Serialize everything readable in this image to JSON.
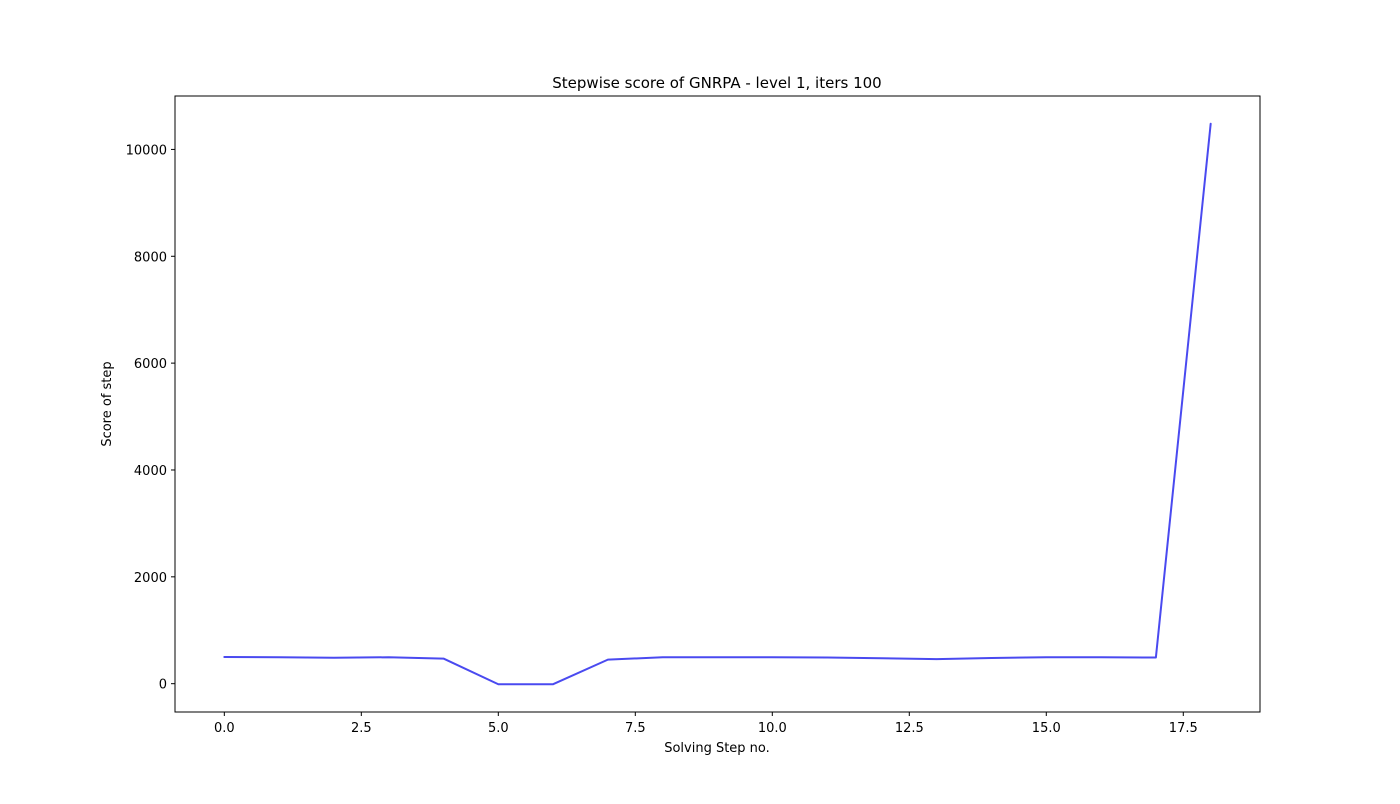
{
  "chart_data": {
    "type": "line",
    "title": "Stepwise score of GNRPA - level 1, iters 100",
    "xlabel": "Solving Step no.",
    "ylabel": "Score of step",
    "xlim": [
      -0.9,
      18.9
    ],
    "ylim": [
      -530,
      11000
    ],
    "x_ticks": [
      0.0,
      2.5,
      5.0,
      7.5,
      10.0,
      12.5,
      15.0,
      17.5
    ],
    "x_tick_labels": [
      "0.0",
      "2.5",
      "5.0",
      "7.5",
      "10.0",
      "12.5",
      "15.0",
      "17.5"
    ],
    "y_ticks": [
      0,
      2000,
      4000,
      6000,
      8000,
      10000
    ],
    "y_tick_labels": [
      "0",
      "2000",
      "4000",
      "6000",
      "8000",
      "10000"
    ],
    "grid": false,
    "series": [
      {
        "color": "#4a4af0",
        "x": [
          0,
          1,
          2,
          3,
          4,
          5,
          6,
          7,
          8,
          9,
          10,
          11,
          12,
          13,
          14,
          15,
          16,
          17,
          18
        ],
        "y": [
          500,
          495,
          485,
          495,
          470,
          -10,
          -10,
          450,
          495,
          495,
          495,
          490,
          475,
          460,
          480,
          495,
          495,
          490,
          10480
        ]
      }
    ]
  }
}
